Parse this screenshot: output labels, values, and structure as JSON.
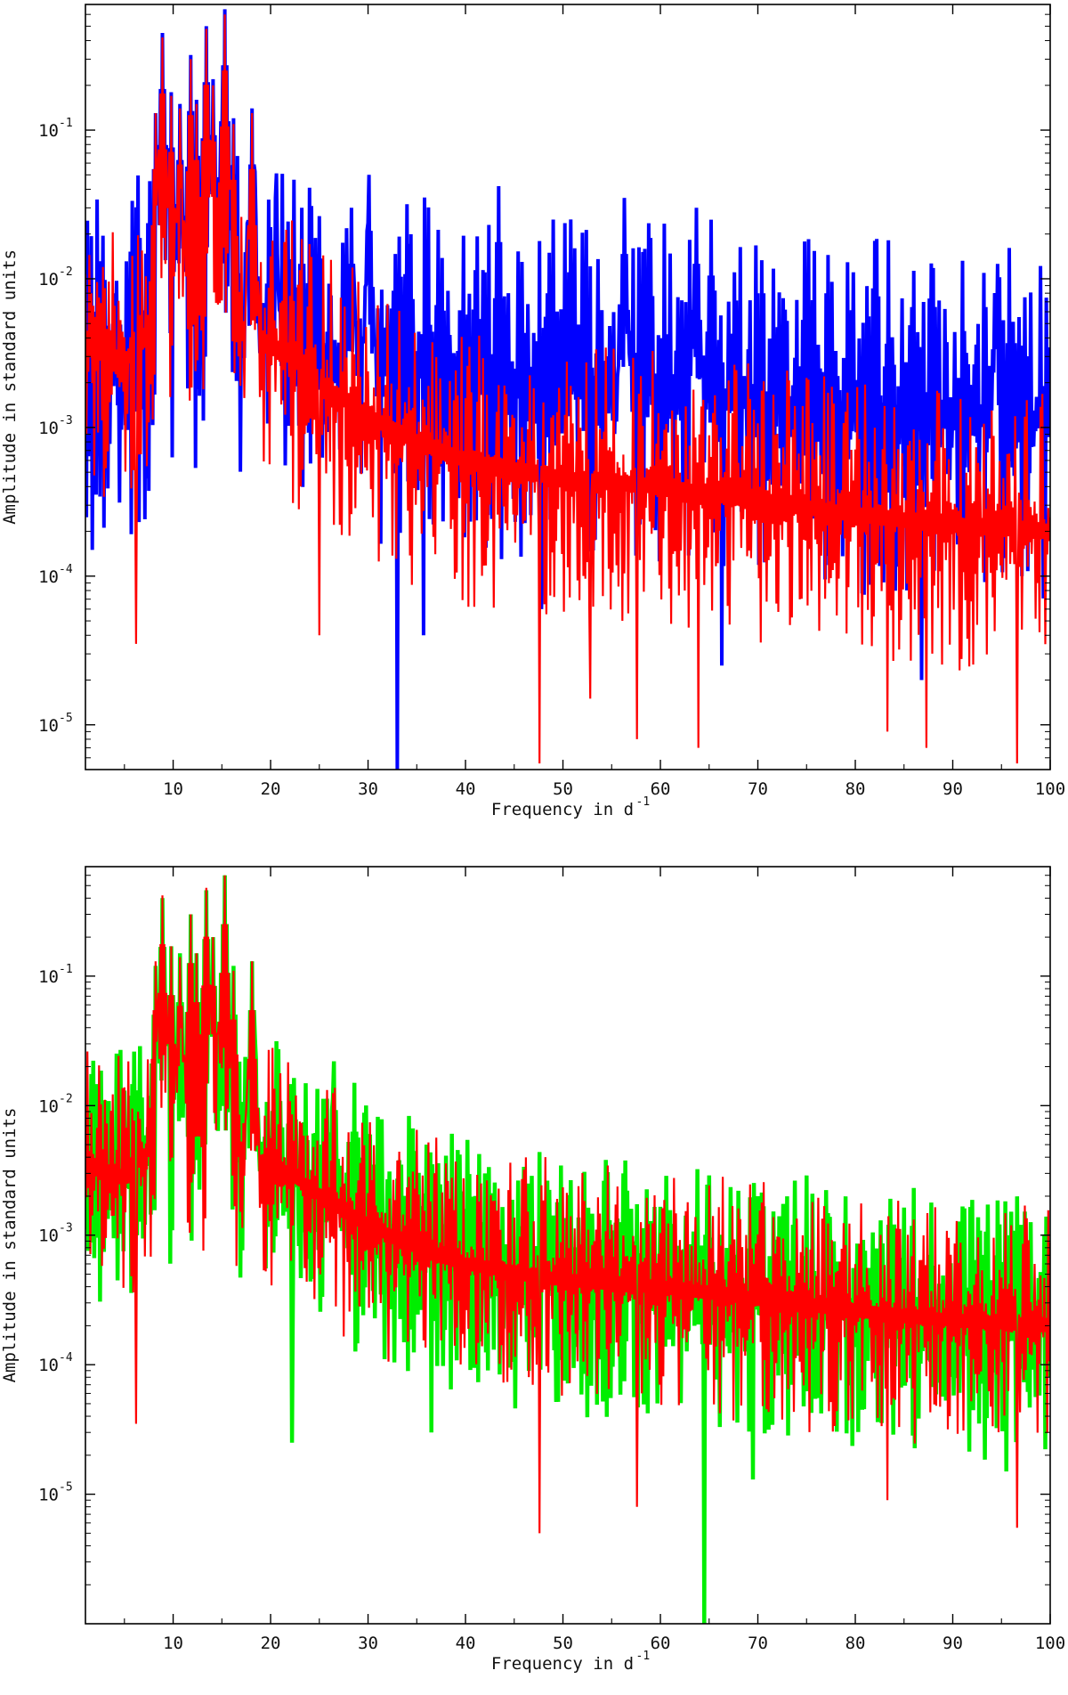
{
  "chart_data": [
    {
      "type": "line",
      "panel": "top",
      "xlabel": "Frequency in d",
      "xlabel_superscript": "-1",
      "ylabel": "Amplitude in standard units",
      "xlim": [
        1,
        100
      ],
      "ylim": [
        5e-06,
        0.7
      ],
      "yscale": "log",
      "grid": false,
      "xticks": [
        10,
        20,
        30,
        40,
        50,
        60,
        70,
        80,
        90,
        100
      ],
      "yticks": [
        {
          "base": "10",
          "exp": "-5",
          "value": 1e-05
        },
        {
          "base": "10",
          "exp": "-4",
          "value": 0.0001
        },
        {
          "base": "10",
          "exp": "-3",
          "value": 0.001
        },
        {
          "base": "10",
          "exp": "-2",
          "value": 0.01
        },
        {
          "base": "10",
          "exp": "-1",
          "value": 0.1
        }
      ],
      "series": [
        {
          "name": "blue spectrum",
          "color": "#0000ff",
          "width": 4,
          "envelope": [
            [
              1,
              0.0035
            ],
            [
              5,
              0.0028
            ],
            [
              9,
              0.006
            ],
            [
              12,
              0.007
            ],
            [
              15,
              0.0055
            ],
            [
              18,
              0.004
            ],
            [
              22,
              0.0035
            ],
            [
              26,
              0.003
            ],
            [
              30,
              0.0028
            ],
            [
              35,
              0.0025
            ],
            [
              40,
              0.0022
            ],
            [
              50,
              0.002
            ],
            [
              60,
              0.0018
            ],
            [
              70,
              0.0015
            ],
            [
              80,
              0.0013
            ],
            [
              90,
              0.0012
            ],
            [
              100,
              0.0011
            ]
          ],
          "spread": 0.7,
          "step": 0.1,
          "peaks": [
            [
              8.2,
              0.13
            ],
            [
              8.9,
              0.45
            ],
            [
              9.8,
              0.18
            ],
            [
              10.7,
              0.15
            ],
            [
              11.8,
              0.32
            ],
            [
              12.4,
              0.16
            ],
            [
              13.4,
              0.5
            ],
            [
              14.1,
              0.22
            ],
            [
              15.3,
              0.65
            ],
            [
              16.2,
              0.12
            ],
            [
              18.1,
              0.14
            ],
            [
              20.5,
              0.035
            ],
            [
              23.2,
              0.03
            ],
            [
              28.3,
              0.03
            ],
            [
              30.1,
              0.05
            ],
            [
              33.0,
              0.035
            ],
            [
              43.4,
              0.042
            ],
            [
              56.3,
              0.035
            ],
            [
              63.7,
              0.03
            ],
            [
              65.2,
              0.025
            ],
            [
              82.0,
              0.018
            ],
            [
              94.3,
              0.008
            ]
          ],
          "dips": [
            [
              1.7,
              0.00015
            ],
            [
              33.0,
              5e-06
            ],
            [
              35.7,
              4e-05
            ],
            [
              47.8,
              6e-05
            ],
            [
              66.3,
              2.5e-05
            ],
            [
              86.8,
              2e-05
            ]
          ]
        },
        {
          "name": "red spectrum (top)",
          "color": "#ff0000",
          "width": 2.2,
          "envelope": [
            [
              1,
              0.0035
            ],
            [
              5,
              0.0028
            ],
            [
              9,
              0.006
            ],
            [
              12,
              0.007
            ],
            [
              15,
              0.0055
            ],
            [
              18,
              0.004
            ],
            [
              22,
              0.003
            ],
            [
              26,
              0.0018
            ],
            [
              30,
              0.0012
            ],
            [
              35,
              0.0008
            ],
            [
              40,
              0.0006
            ],
            [
              50,
              0.00045
            ],
            [
              60,
              0.0004
            ],
            [
              70,
              0.00032
            ],
            [
              80,
              0.00026
            ],
            [
              90,
              0.00022
            ],
            [
              100,
              0.0002
            ]
          ],
          "spread": 0.55,
          "step": 0.1,
          "peaks": [
            [
              8.2,
              0.13
            ],
            [
              8.9,
              0.42
            ],
            [
              9.8,
              0.17
            ],
            [
              10.7,
              0.14
            ],
            [
              11.8,
              0.3
            ],
            [
              12.4,
              0.15
            ],
            [
              13.4,
              0.48
            ],
            [
              14.1,
              0.2
            ],
            [
              15.3,
              0.6
            ],
            [
              16.2,
              0.11
            ],
            [
              18.1,
              0.13
            ]
          ],
          "dips": [
            [
              6.2,
              3.5e-05
            ],
            [
              25.0,
              4e-05
            ],
            [
              47.6,
              5.5e-06
            ],
            [
              52.8,
              1.5e-05
            ],
            [
              57.6,
              8e-06
            ],
            [
              63.9,
              7e-06
            ],
            [
              83.3,
              9e-06
            ],
            [
              87.3,
              7e-06
            ],
            [
              96.6,
              5.5e-06
            ]
          ]
        }
      ]
    },
    {
      "type": "line",
      "panel": "bottom",
      "xlabel": "Frequency in d",
      "xlabel_superscript": "-1",
      "ylabel": "Amplitude in standard units",
      "xlim": [
        1,
        100
      ],
      "ylim": [
        1e-06,
        0.7
      ],
      "yscale": "log",
      "grid": false,
      "xticks": [
        10,
        20,
        30,
        40,
        50,
        60,
        70,
        80,
        90,
        100
      ],
      "yticks": [
        {
          "base": "10",
          "exp": "-5",
          "value": 1e-05
        },
        {
          "base": "10",
          "exp": "-4",
          "value": 0.0001
        },
        {
          "base": "10",
          "exp": "-3",
          "value": 0.001
        },
        {
          "base": "10",
          "exp": "-2",
          "value": 0.01
        },
        {
          "base": "10",
          "exp": "-1",
          "value": 0.1
        }
      ],
      "series": [
        {
          "name": "green spectrum",
          "color": "#00ee00",
          "width": 4.5,
          "envelope": [
            [
              1,
              0.0035
            ],
            [
              5,
              0.0028
            ],
            [
              9,
              0.006
            ],
            [
              12,
              0.007
            ],
            [
              15,
              0.0055
            ],
            [
              18,
              0.004
            ],
            [
              22,
              0.003
            ],
            [
              26,
              0.0018
            ],
            [
              30,
              0.0012
            ],
            [
              35,
              0.0008
            ],
            [
              40,
              0.0006
            ],
            [
              50,
              0.00045
            ],
            [
              60,
              0.0004
            ],
            [
              70,
              0.00032
            ],
            [
              80,
              0.00026
            ],
            [
              90,
              0.00022
            ],
            [
              100,
              0.0002
            ]
          ],
          "spread": 0.6,
          "step": 0.1,
          "peaks": [
            [
              8.2,
              0.12
            ],
            [
              8.9,
              0.4
            ],
            [
              9.8,
              0.17
            ],
            [
              10.7,
              0.15
            ],
            [
              11.8,
              0.3
            ],
            [
              12.4,
              0.15
            ],
            [
              13.4,
              0.46
            ],
            [
              14.1,
              0.2
            ],
            [
              15.3,
              0.6
            ],
            [
              16.2,
              0.12
            ],
            [
              18.1,
              0.13
            ],
            [
              26.5,
              0.022
            ],
            [
              28.6,
              0.015
            ],
            [
              30.2,
              0.006
            ],
            [
              36.0,
              0.005
            ],
            [
              42.0,
              0.003
            ],
            [
              56.2,
              0.003
            ],
            [
              70.0,
              0.002
            ],
            [
              72.2,
              0.0014
            ],
            [
              97.0,
              0.0012
            ]
          ],
          "dips": [
            [
              22.2,
              2.5e-05
            ],
            [
              36.5,
              3e-05
            ],
            [
              64.5,
              1e-06
            ],
            [
              69.5,
              1.3e-05
            ],
            [
              95.5,
              1.5e-05
            ]
          ]
        },
        {
          "name": "red spectrum (bottom)",
          "color": "#ff0000",
          "width": 2.2,
          "envelope": [
            [
              1,
              0.0035
            ],
            [
              5,
              0.0028
            ],
            [
              9,
              0.006
            ],
            [
              12,
              0.007
            ],
            [
              15,
              0.0055
            ],
            [
              18,
              0.004
            ],
            [
              22,
              0.003
            ],
            [
              26,
              0.0018
            ],
            [
              30,
              0.0012
            ],
            [
              35,
              0.0008
            ],
            [
              40,
              0.0006
            ],
            [
              50,
              0.00045
            ],
            [
              60,
              0.0004
            ],
            [
              70,
              0.00032
            ],
            [
              80,
              0.00026
            ],
            [
              90,
              0.00022
            ],
            [
              100,
              0.0002
            ]
          ],
          "spread": 0.55,
          "step": 0.1,
          "peaks": [
            [
              8.2,
              0.13
            ],
            [
              8.9,
              0.42
            ],
            [
              9.8,
              0.17
            ],
            [
              10.7,
              0.14
            ],
            [
              11.8,
              0.3
            ],
            [
              12.4,
              0.15
            ],
            [
              13.4,
              0.48
            ],
            [
              14.1,
              0.2
            ],
            [
              15.3,
              0.6
            ],
            [
              16.2,
              0.11
            ],
            [
              18.1,
              0.13
            ]
          ],
          "dips": [
            [
              6.2,
              3.5e-05
            ],
            [
              47.6,
              5e-06
            ],
            [
              57.6,
              8e-06
            ],
            [
              83.3,
              9e-06
            ],
            [
              96.6,
              5.5e-06
            ]
          ]
        }
      ]
    }
  ]
}
